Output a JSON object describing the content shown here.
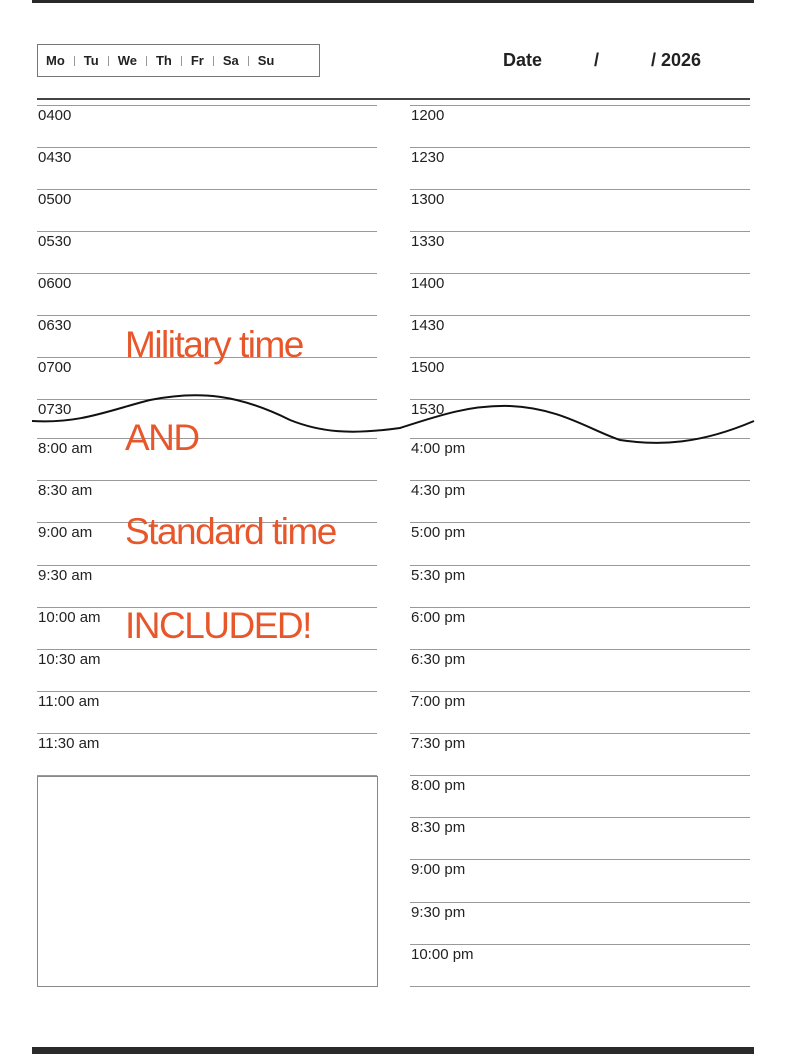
{
  "header": {
    "weekdays": [
      "Mo",
      "Tu",
      "We",
      "Th",
      "Fr",
      "Sa",
      "Su"
    ],
    "date_label": "Date",
    "date_separator": "/",
    "date_year": "/ 2026"
  },
  "left_times": [
    "0400",
    "0430",
    "0500",
    "0530",
    "0600",
    "0630",
    "0700",
    "0730",
    "8:00 am",
    "8:30 am",
    "9:00 am",
    "9:30 am",
    "10:00 am",
    "10:30 am",
    "11:00 am",
    "11:30 am"
  ],
  "right_times": [
    "1200",
    "1230",
    "1300",
    "1330",
    "1400",
    "1430",
    "1500",
    "1530",
    "4:00 pm",
    "4:30 pm",
    "5:00 pm",
    "5:30 pm",
    "6:00 pm",
    "6:30 pm",
    "7:00 pm",
    "7:30 pm",
    "8:00 pm",
    "8:30 pm",
    "9:00 pm",
    "9:30 pm",
    "10:00 pm"
  ],
  "promo": {
    "line1": "Military time",
    "line2": "AND",
    "line3": "Standard time",
    "line4": "INCLUDED!",
    "color": "#e8572b"
  }
}
